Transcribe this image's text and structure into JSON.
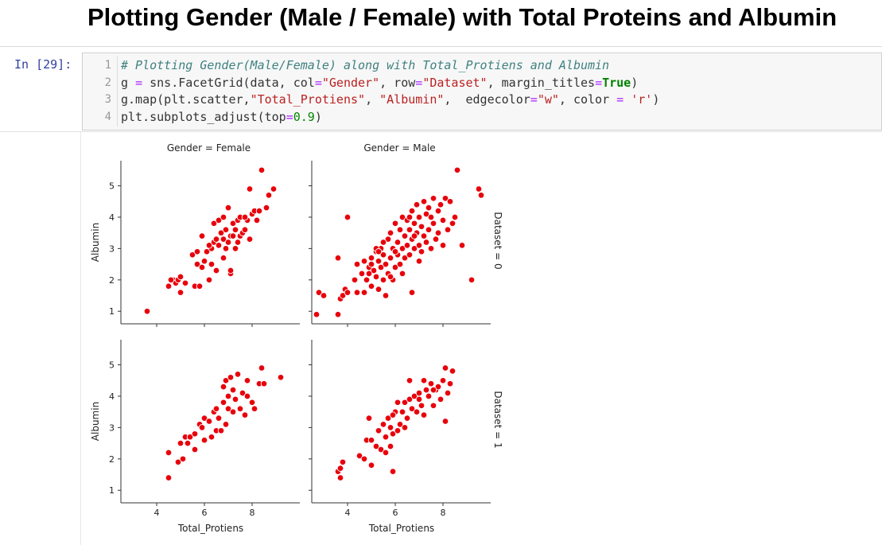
{
  "heading": "Plotting Gender (Male / Female) with Total Proteins and Albumin",
  "cell": {
    "prompt": "In [29]:",
    "line_numbers": [
      "1",
      "2",
      "3",
      "4"
    ],
    "lines": [
      [
        [
          "# Plotting Gender(Male/Female) along with Total_Protiens and Albumin",
          "com"
        ]
      ],
      [
        [
          "g ",
          ""
        ],
        [
          "=",
          "op"
        ],
        [
          " sns.FacetGrid(data, col",
          ""
        ],
        [
          "=",
          "op"
        ],
        [
          "\"Gender\"",
          "str"
        ],
        [
          ", row",
          ""
        ],
        [
          "=",
          "op"
        ],
        [
          "\"Dataset\"",
          "str"
        ],
        [
          ", margin_titles",
          ""
        ],
        [
          "=",
          "op"
        ],
        [
          "True",
          "kw"
        ],
        [
          ")",
          ""
        ]
      ],
      [
        [
          "g.map(plt.scatter,",
          ""
        ],
        [
          "\"Total_Protiens\"",
          "str"
        ],
        [
          ", ",
          ""
        ],
        [
          "\"Albumin\"",
          "str"
        ],
        [
          ",  edgecolor",
          ""
        ],
        [
          "=",
          "op"
        ],
        [
          "\"w\"",
          "str"
        ],
        [
          ", color ",
          ""
        ],
        [
          "=",
          "op"
        ],
        [
          " ",
          ""
        ],
        [
          "'r'",
          "str"
        ],
        [
          ")",
          ""
        ]
      ],
      [
        [
          "plt.subplots_adjust(top",
          ""
        ],
        [
          "=",
          "op"
        ],
        [
          "0.9",
          "num"
        ],
        [
          ")",
          ""
        ]
      ]
    ]
  },
  "chart_data": {
    "type": "scatter",
    "marker_color": "#e8000b",
    "edge_color": "#ffffff",
    "col_titles": [
      "Gender = Female",
      "Gender = Male"
    ],
    "row_titles": [
      "Dataset = 0",
      "Dataset = 1"
    ],
    "xlabel": "Total_Protiens",
    "ylabel": "Albumin",
    "xlim": [
      2.5,
      10
    ],
    "ylim": [
      0.6,
      5.8
    ],
    "xticks": [
      4,
      6,
      8
    ],
    "yticks": [
      1,
      2,
      3,
      4,
      5
    ],
    "panels": [
      {
        "row": 0,
        "col": 0,
        "points": [
          [
            3.6,
            1.0
          ],
          [
            4.5,
            1.8
          ],
          [
            4.7,
            2.0
          ],
          [
            4.8,
            1.9
          ],
          [
            4.6,
            2.0
          ],
          [
            4.9,
            2.0
          ],
          [
            5.0,
            1.6
          ],
          [
            5.0,
            2.1
          ],
          [
            5.2,
            1.9
          ],
          [
            5.5,
            2.8
          ],
          [
            5.6,
            1.8
          ],
          [
            5.8,
            1.8
          ],
          [
            5.7,
            2.5
          ],
          [
            5.9,
            2.4
          ],
          [
            5.9,
            3.4
          ],
          [
            6.0,
            2.6
          ],
          [
            6.1,
            2.9
          ],
          [
            6.2,
            2.0
          ],
          [
            6.3,
            2.5
          ],
          [
            6.3,
            3.0
          ],
          [
            6.4,
            3.2
          ],
          [
            6.4,
            3.8
          ],
          [
            6.5,
            2.3
          ],
          [
            6.6,
            3.1
          ],
          [
            6.6,
            3.9
          ],
          [
            6.7,
            3.5
          ],
          [
            6.8,
            2.7
          ],
          [
            6.8,
            3.3
          ],
          [
            6.8,
            4.0
          ],
          [
            6.9,
            3.0
          ],
          [
            6.9,
            3.6
          ],
          [
            7.0,
            3.2
          ],
          [
            7.0,
            4.3
          ],
          [
            7.1,
            2.2
          ],
          [
            7.1,
            2.3
          ],
          [
            7.1,
            3.4
          ],
          [
            7.2,
            3.8
          ],
          [
            7.3,
            3.0
          ],
          [
            7.3,
            3.6
          ],
          [
            7.4,
            3.9
          ],
          [
            7.5,
            4.0
          ],
          [
            7.5,
            3.4
          ],
          [
            7.6,
            3.5
          ],
          [
            7.7,
            3.6
          ],
          [
            7.8,
            3.9
          ],
          [
            7.9,
            3.3
          ],
          [
            8.0,
            4.1
          ],
          [
            8.1,
            4.2
          ],
          [
            8.2,
            3.9
          ],
          [
            8.3,
            4.2
          ],
          [
            7.7,
            4.0
          ],
          [
            7.4,
            3.2
          ],
          [
            7.9,
            4.9
          ],
          [
            8.4,
            5.5
          ],
          [
            8.6,
            4.3
          ],
          [
            8.7,
            4.7
          ],
          [
            8.9,
            4.9
          ],
          [
            5.7,
            2.9
          ],
          [
            6.2,
            3.1
          ],
          [
            6.5,
            3.3
          ],
          [
            7.2,
            3.4
          ]
        ]
      },
      {
        "row": 0,
        "col": 1,
        "points": [
          [
            2.7,
            0.9
          ],
          [
            2.8,
            1.6
          ],
          [
            3.0,
            1.5
          ],
          [
            3.6,
            2.7
          ],
          [
            3.6,
            0.9
          ],
          [
            3.7,
            1.4
          ],
          [
            3.8,
            1.5
          ],
          [
            3.9,
            1.7
          ],
          [
            4.0,
            1.6
          ],
          [
            4.3,
            2.0
          ],
          [
            4.4,
            1.6
          ],
          [
            4.4,
            2.5
          ],
          [
            4.6,
            2.2
          ],
          [
            4.7,
            2.6
          ],
          [
            4.7,
            1.6
          ],
          [
            4.8,
            2.0
          ],
          [
            4.9,
            2.4
          ],
          [
            5.0,
            2.7
          ],
          [
            5.0,
            1.8
          ],
          [
            5.1,
            2.3
          ],
          [
            5.2,
            2.9
          ],
          [
            5.2,
            2.1
          ],
          [
            5.3,
            1.7
          ],
          [
            5.3,
            2.6
          ],
          [
            5.4,
            2.4
          ],
          [
            5.4,
            3.0
          ],
          [
            5.5,
            2.0
          ],
          [
            5.5,
            2.8
          ],
          [
            5.6,
            1.5
          ],
          [
            5.6,
            2.5
          ],
          [
            5.7,
            3.3
          ],
          [
            5.7,
            2.2
          ],
          [
            5.8,
            2.7
          ],
          [
            5.8,
            3.5
          ],
          [
            5.9,
            2.0
          ],
          [
            5.9,
            3.0
          ],
          [
            6.0,
            2.4
          ],
          [
            6.0,
            3.8
          ],
          [
            6.1,
            2.8
          ],
          [
            6.1,
            3.2
          ],
          [
            6.2,
            2.5
          ],
          [
            6.2,
            3.6
          ],
          [
            6.3,
            3.0
          ],
          [
            6.3,
            4.0
          ],
          [
            6.4,
            2.7
          ],
          [
            6.4,
            3.4
          ],
          [
            6.5,
            3.1
          ],
          [
            6.5,
            3.9
          ],
          [
            6.6,
            2.8
          ],
          [
            6.6,
            3.6
          ],
          [
            6.7,
            1.6
          ],
          [
            6.7,
            3.3
          ],
          [
            6.7,
            4.2
          ],
          [
            6.8,
            3.0
          ],
          [
            6.8,
            3.8
          ],
          [
            6.9,
            3.5
          ],
          [
            6.9,
            4.4
          ],
          [
            7.0,
            3.1
          ],
          [
            7.0,
            4.0
          ],
          [
            7.1,
            2.9
          ],
          [
            7.1,
            3.7
          ],
          [
            7.2,
            3.4
          ],
          [
            7.2,
            4.5
          ],
          [
            7.3,
            3.2
          ],
          [
            7.3,
            4.1
          ],
          [
            7.4,
            3.6
          ],
          [
            7.5,
            3.0
          ],
          [
            7.5,
            4.0
          ],
          [
            7.6,
            3.8
          ],
          [
            7.6,
            4.6
          ],
          [
            7.7,
            3.3
          ],
          [
            7.8,
            4.2
          ],
          [
            7.8,
            3.5
          ],
          [
            7.9,
            4.4
          ],
          [
            8.0,
            3.1
          ],
          [
            8.0,
            3.9
          ],
          [
            8.1,
            4.6
          ],
          [
            8.2,
            3.6
          ],
          [
            8.3,
            4.5
          ],
          [
            8.4,
            3.8
          ],
          [
            8.5,
            4.0
          ],
          [
            8.6,
            5.5
          ],
          [
            8.8,
            3.1
          ],
          [
            9.2,
            2.0
          ],
          [
            9.5,
            4.9
          ],
          [
            9.6,
            4.7
          ],
          [
            4.0,
            4.0
          ],
          [
            6.0,
            2.9
          ],
          [
            5.0,
            2.5
          ],
          [
            5.5,
            3.2
          ],
          [
            6.3,
            2.2
          ],
          [
            7.0,
            2.6
          ],
          [
            5.2,
            3.0
          ],
          [
            6.6,
            4.0
          ],
          [
            5.8,
            2.1
          ],
          [
            4.9,
            2.2
          ],
          [
            5.3,
            2.9
          ],
          [
            6.8,
            3.4
          ],
          [
            7.4,
            4.3
          ]
        ]
      },
      {
        "row": 1,
        "col": 0,
        "points": [
          [
            4.5,
            1.4
          ],
          [
            4.5,
            2.2
          ],
          [
            4.9,
            1.9
          ],
          [
            5.0,
            2.5
          ],
          [
            5.1,
            2.0
          ],
          [
            5.2,
            2.7
          ],
          [
            5.3,
            2.5
          ],
          [
            5.4,
            2.7
          ],
          [
            5.6,
            2.3
          ],
          [
            5.6,
            2.8
          ],
          [
            5.8,
            3.1
          ],
          [
            5.9,
            3.0
          ],
          [
            6.0,
            3.3
          ],
          [
            6.0,
            2.6
          ],
          [
            6.2,
            3.2
          ],
          [
            6.3,
            2.7
          ],
          [
            6.4,
            3.5
          ],
          [
            6.5,
            3.6
          ],
          [
            6.5,
            2.9
          ],
          [
            6.6,
            3.3
          ],
          [
            6.7,
            2.9
          ],
          [
            6.8,
            3.8
          ],
          [
            6.8,
            4.3
          ],
          [
            6.9,
            3.1
          ],
          [
            6.9,
            4.5
          ],
          [
            7.0,
            3.6
          ],
          [
            7.0,
            4.0
          ],
          [
            7.1,
            4.6
          ],
          [
            7.2,
            3.5
          ],
          [
            7.2,
            4.2
          ],
          [
            7.3,
            3.9
          ],
          [
            7.4,
            4.7
          ],
          [
            7.5,
            3.6
          ],
          [
            7.6,
            4.1
          ],
          [
            7.7,
            3.4
          ],
          [
            7.8,
            4.0
          ],
          [
            7.8,
            4.5
          ],
          [
            8.0,
            3.8
          ],
          [
            8.1,
            3.6
          ],
          [
            8.3,
            4.4
          ],
          [
            8.4,
            4.9
          ],
          [
            8.5,
            4.4
          ],
          [
            9.2,
            4.6
          ]
        ]
      },
      {
        "row": 1,
        "col": 1,
        "points": [
          [
            3.6,
            1.6
          ],
          [
            3.7,
            1.4
          ],
          [
            3.7,
            1.7
          ],
          [
            3.8,
            1.9
          ],
          [
            4.5,
            2.1
          ],
          [
            4.7,
            2.0
          ],
          [
            4.8,
            2.6
          ],
          [
            4.9,
            3.3
          ],
          [
            5.0,
            2.6
          ],
          [
            5.0,
            1.8
          ],
          [
            5.2,
            2.4
          ],
          [
            5.3,
            2.9
          ],
          [
            5.4,
            2.3
          ],
          [
            5.5,
            3.1
          ],
          [
            5.6,
            2.2
          ],
          [
            5.6,
            2.7
          ],
          [
            5.7,
            3.3
          ],
          [
            5.8,
            2.4
          ],
          [
            5.8,
            3.0
          ],
          [
            5.9,
            1.6
          ],
          [
            5.9,
            2.8
          ],
          [
            6.0,
            3.5
          ],
          [
            6.1,
            2.9
          ],
          [
            6.1,
            3.8
          ],
          [
            6.2,
            3.1
          ],
          [
            6.3,
            3.5
          ],
          [
            6.4,
            3.0
          ],
          [
            6.4,
            3.8
          ],
          [
            6.5,
            3.3
          ],
          [
            6.6,
            3.9
          ],
          [
            6.7,
            3.6
          ],
          [
            6.8,
            4.0
          ],
          [
            6.9,
            3.5
          ],
          [
            7.0,
            3.9
          ],
          [
            7.1,
            3.7
          ],
          [
            7.2,
            4.5
          ],
          [
            7.2,
            3.4
          ],
          [
            7.3,
            4.2
          ],
          [
            7.4,
            4.0
          ],
          [
            7.5,
            4.4
          ],
          [
            7.6,
            3.7
          ],
          [
            7.7,
            4.2
          ],
          [
            7.8,
            4.3
          ],
          [
            7.9,
            3.9
          ],
          [
            8.0,
            4.5
          ],
          [
            8.1,
            3.2
          ],
          [
            8.1,
            4.9
          ],
          [
            8.2,
            4.1
          ],
          [
            8.3,
            4.4
          ],
          [
            8.4,
            4.8
          ],
          [
            5.9,
            3.4
          ],
          [
            6.6,
            4.5
          ],
          [
            7.0,
            4.1
          ],
          [
            7.6,
            4.2
          ]
        ]
      }
    ]
  }
}
